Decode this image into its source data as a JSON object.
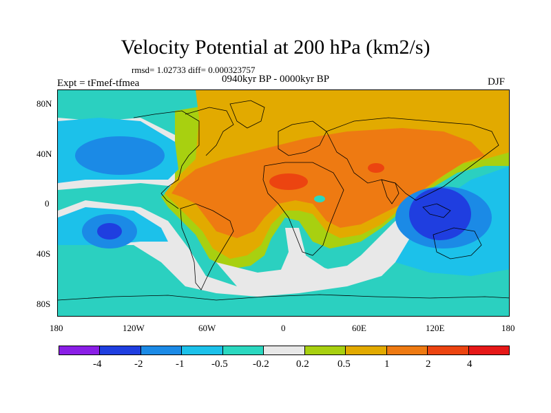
{
  "title": "Velocity Potential at 200 hPa (km2/s)",
  "stats": "rmsd= 1.02733 diff= 0.000323757",
  "expt": "Expt = tFmef-tfmea",
  "period": "0940kyr BP - 0000kyr BP",
  "season": "DJF",
  "lat_labels": [
    "80N",
    "40N",
    "0",
    "40S",
    "80S"
  ],
  "lon_labels": [
    "180",
    "120W",
    "60W",
    "0",
    "60E",
    "120E",
    "180"
  ],
  "colorbar": {
    "labels": [
      "-4",
      "-2",
      "-1",
      "-0.5",
      "-0.2",
      "0.2",
      "0.5",
      "1",
      "2",
      "4"
    ],
    "colors": [
      "#8a1ee6",
      "#1f3ee0",
      "#1b8ae6",
      "#1cc1ea",
      "#2bd8c0",
      "#e8e8e8",
      "#a8d010",
      "#e2aa00",
      "#ee7a12",
      "#ec4410",
      "#e61818"
    ]
  }
}
